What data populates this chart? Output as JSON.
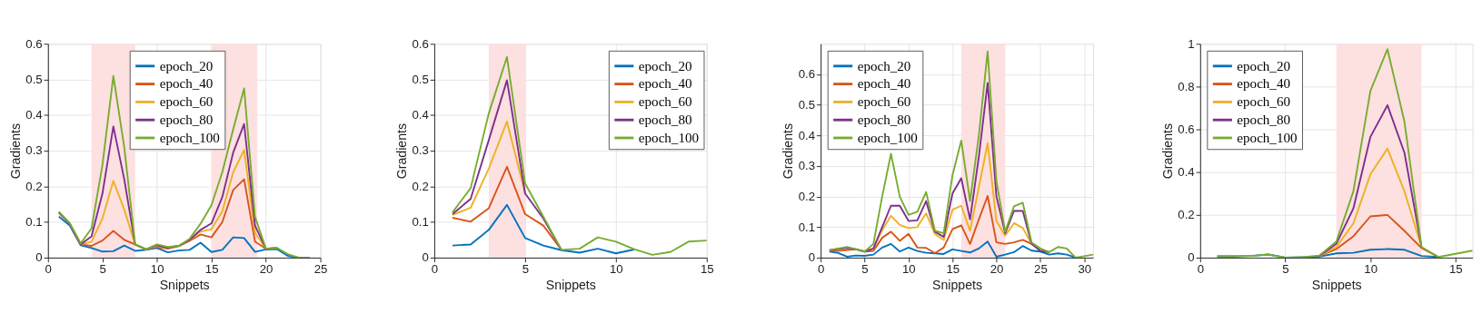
{
  "chart_data": [
    {
      "type": "line",
      "xlabel": "Snippets",
      "ylabel": "Gradients",
      "grid": true,
      "legend": "top",
      "xlim": [
        0,
        25
      ],
      "ylim": [
        0,
        0.6
      ],
      "xticks": [
        0,
        5,
        10,
        15,
        20,
        25
      ],
      "yticks": [
        0,
        0.1,
        0.2,
        0.3,
        0.4,
        0.5,
        0.6
      ],
      "bands": [
        {
          "axis": "x",
          "from": 4,
          "to": 8,
          "color": "#fde0e0"
        },
        {
          "axis": "x",
          "from": 15,
          "to": 19.2,
          "color": "#fde0e0"
        }
      ],
      "x": [
        1,
        2,
        3,
        4,
        5,
        6,
        7,
        8,
        9,
        10,
        11,
        12,
        13,
        14,
        15,
        16,
        17,
        18,
        19,
        20,
        21,
        22,
        23,
        24
      ],
      "series": [
        {
          "name": "epoch_20",
          "color": "#0072bd",
          "values": [
            0.115,
            0.09,
            0.035,
            0.027,
            0.017,
            0.018,
            0.034,
            0.019,
            0.022,
            0.027,
            0.015,
            0.02,
            0.022,
            0.042,
            0.016,
            0.022,
            0.057,
            0.055,
            0.016,
            0.023,
            0.024,
            0.005,
            0,
            0
          ]
        },
        {
          "name": "epoch_40",
          "color": "#d95319",
          "values": [
            0.125,
            0.095,
            0.037,
            0.033,
            0.048,
            0.075,
            0.05,
            0.037,
            0.023,
            0.03,
            0.025,
            0.032,
            0.047,
            0.065,
            0.057,
            0.1,
            0.19,
            0.22,
            0.045,
            0.025,
            0.027,
            null,
            null,
            null
          ]
        },
        {
          "name": "epoch_60",
          "color": "#edb120",
          "values": [
            0.127,
            0.095,
            0.037,
            0.045,
            0.11,
            0.215,
            0.135,
            0.037,
            0.023,
            0.033,
            0.027,
            0.033,
            0.05,
            0.073,
            0.08,
            0.13,
            0.24,
            0.302,
            0.07,
            0.025,
            0.027,
            null,
            null,
            null
          ]
        },
        {
          "name": "epoch_80",
          "color": "#7e2f8e",
          "values": [
            0.128,
            0.095,
            0.037,
            0.06,
            0.18,
            0.368,
            0.22,
            0.037,
            0.023,
            0.035,
            0.028,
            0.033,
            0.05,
            0.078,
            0.096,
            0.17,
            0.295,
            0.375,
            0.09,
            0.025,
            0.027,
            null,
            null,
            null
          ]
        },
        {
          "name": "epoch_100",
          "color": "#77ac30",
          "values": [
            0.128,
            0.097,
            0.04,
            0.082,
            0.26,
            0.51,
            0.31,
            0.037,
            0.023,
            0.037,
            0.03,
            0.033,
            0.053,
            0.095,
            0.147,
            0.24,
            0.36,
            0.475,
            0.115,
            0.025,
            0.028,
            0.01,
            0,
            0
          ]
        }
      ]
    },
    {
      "type": "line",
      "xlabel": "Snippets",
      "ylabel": "Gradients",
      "grid": true,
      "legend": "top right",
      "xlim": [
        0,
        15
      ],
      "ylim": [
        0,
        0.6
      ],
      "xticks": [
        0,
        5,
        10,
        15
      ],
      "yticks": [
        0,
        0.1,
        0.2,
        0.3,
        0.4,
        0.5,
        0.6
      ],
      "bands": [
        {
          "axis": "x",
          "from": 3,
          "to": 5,
          "color": "#fde0e0"
        }
      ],
      "x": [
        1,
        2,
        3,
        4,
        5,
        6,
        7,
        8,
        9,
        10,
        11,
        12,
        13,
        14,
        15
      ],
      "series": [
        {
          "name": "epoch_20",
          "color": "#0072bd",
          "values": [
            0.034,
            0.037,
            0.078,
            0.148,
            0.055,
            0.034,
            0.021,
            0.014,
            0.025,
            0.012,
            0.023,
            null,
            null,
            null,
            null
          ]
        },
        {
          "name": "epoch_40",
          "color": "#d95319",
          "values": [
            0.112,
            0.101,
            0.139,
            0.255,
            0.122,
            0.09,
            0.022,
            null,
            null,
            null,
            null,
            null,
            null,
            null,
            null
          ]
        },
        {
          "name": "epoch_60",
          "color": "#edb120",
          "values": [
            0.12,
            0.14,
            0.25,
            0.382,
            0.18,
            null,
            null,
            null,
            null,
            null,
            null,
            null,
            null,
            null,
            null
          ]
        },
        {
          "name": "epoch_80",
          "color": "#7e2f8e",
          "values": [
            0.122,
            0.165,
            0.33,
            0.498,
            0.18,
            0.11,
            0.022,
            null,
            null,
            null,
            null,
            null,
            null,
            null,
            null
          ]
        },
        {
          "name": "epoch_100",
          "color": "#77ac30",
          "values": [
            0.127,
            0.195,
            0.405,
            0.563,
            0.208,
            0.115,
            0.022,
            0.025,
            0.057,
            0.045,
            0.024,
            0.008,
            0.016,
            0.045,
            0.048
          ]
        }
      ]
    },
    {
      "type": "line",
      "xlabel": "Snippets",
      "ylabel": "Gradients",
      "grid": true,
      "legend": "top left",
      "xlim": [
        0,
        31
      ],
      "ylim": [
        0,
        0.7
      ],
      "xticks": [
        0,
        5,
        10,
        15,
        20,
        25,
        30
      ],
      "yticks": [
        0,
        0.1,
        0.2,
        0.3,
        0.4,
        0.5,
        0.6
      ],
      "bands": [
        {
          "axis": "x",
          "from": 16,
          "to": 21,
          "color": "#fde0e0"
        }
      ],
      "x": [
        1,
        2,
        3,
        4,
        5,
        6,
        7,
        8,
        9,
        10,
        11,
        12,
        13,
        14,
        15,
        16,
        17,
        18,
        19,
        20,
        21,
        22,
        23,
        24,
        25,
        26,
        27,
        28,
        29,
        30,
        31
      ],
      "series": [
        {
          "name": "epoch_20",
          "color": "#0072bd",
          "values": [
            0.02,
            0.015,
            0.003,
            0.007,
            0.006,
            0.01,
            0.033,
            0.045,
            0.02,
            0.033,
            0.022,
            0.016,
            0.014,
            0.012,
            0.027,
            0.022,
            0.017,
            0.03,
            0.053,
            0.003,
            0.01,
            0.018,
            0.038,
            0.023,
            0.02,
            0.01,
            0.014,
            0.01,
            0,
            null,
            null
          ]
        },
        {
          "name": "epoch_40",
          "color": "#d95319",
          "values": [
            0.023,
            0.022,
            0.025,
            0.027,
            0.02,
            0.022,
            0.065,
            0.085,
            0.055,
            0.078,
            0.033,
            0.032,
            0.015,
            0.033,
            0.093,
            0.106,
            0.045,
            0.125,
            0.202,
            0.05,
            0.045,
            0.05,
            0.058,
            0.045,
            0.025,
            0.018,
            null,
            null,
            null,
            null,
            null
          ]
        },
        {
          "name": "epoch_60",
          "color": "#edb120",
          "values": [
            null,
            null,
            null,
            null,
            null,
            0.03,
            0.09,
            0.137,
            0.107,
            0.097,
            0.1,
            0.145,
            0.077,
            0.058,
            0.157,
            0.17,
            0.088,
            0.23,
            0.375,
            0.12,
            0.072,
            0.113,
            0.097,
            0.045,
            0.025,
            0.018,
            null,
            null,
            null,
            null,
            null
          ]
        },
        {
          "name": "epoch_80",
          "color": "#7e2f8e",
          "values": [
            0.025,
            0.028,
            0.032,
            0.028,
            0.02,
            0.03,
            0.1,
            0.17,
            0.17,
            0.12,
            0.122,
            0.185,
            0.085,
            0.068,
            0.21,
            0.26,
            0.125,
            0.33,
            0.572,
            0.2,
            0.08,
            0.153,
            0.153,
            0.045,
            0.022,
            0.018,
            null,
            null,
            null,
            null,
            null
          ]
        },
        {
          "name": "epoch_100",
          "color": "#77ac30",
          "values": [
            0.025,
            0.03,
            0.035,
            0.028,
            0.02,
            0.045,
            0.2,
            0.34,
            0.2,
            0.14,
            0.15,
            0.215,
            0.088,
            0.08,
            0.27,
            0.383,
            0.185,
            0.4,
            0.675,
            0.25,
            0.085,
            0.168,
            0.18,
            0.05,
            0.03,
            0.018,
            0.035,
            0.03,
            0,
            0.005,
            0.01
          ]
        }
      ]
    },
    {
      "type": "line",
      "xlabel": "Snippets",
      "ylabel": "Gradients",
      "grid": true,
      "legend": "top left",
      "xlim": [
        0,
        16
      ],
      "ylim": [
        0,
        1
      ],
      "xticks": [
        0,
        5,
        10,
        15
      ],
      "yticks": [
        0,
        0.2,
        0.4,
        0.6,
        0.8,
        1
      ],
      "bands": [
        {
          "axis": "x",
          "from": 8,
          "to": 13,
          "color": "#fde0e0"
        }
      ],
      "x": [
        1,
        2,
        3,
        4,
        5,
        6,
        7,
        8,
        9,
        10,
        11,
        12,
        13,
        14,
        15,
        16
      ],
      "series": [
        {
          "name": "epoch_20",
          "color": "#0072bd",
          "values": [
            0.005,
            0.005,
            0.008,
            0.015,
            0,
            0.002,
            0.005,
            0.02,
            0.023,
            0.037,
            0.04,
            0.037,
            0.008,
            0.003,
            null,
            null
          ]
        },
        {
          "name": "epoch_40",
          "color": "#d95319",
          "values": [
            null,
            null,
            null,
            null,
            null,
            null,
            0.008,
            0.04,
            0.1,
            0.193,
            0.2,
            0.125,
            0.045,
            0.003,
            null,
            null
          ]
        },
        {
          "name": "epoch_60",
          "color": "#edb120",
          "values": [
            null,
            null,
            null,
            null,
            null,
            null,
            0.008,
            0.05,
            0.16,
            0.39,
            0.51,
            0.31,
            0.05,
            null,
            null,
            null
          ]
        },
        {
          "name": "epoch_80",
          "color": "#7e2f8e",
          "values": [
            null,
            null,
            null,
            null,
            null,
            null,
            0.008,
            0.065,
            0.23,
            0.565,
            0.713,
            0.49,
            0.05,
            null,
            null,
            null
          ]
        },
        {
          "name": "epoch_100",
          "color": "#77ac30",
          "values": [
            0.008,
            0.008,
            0.008,
            0.015,
            0,
            0.002,
            0.01,
            0.075,
            0.31,
            0.78,
            0.975,
            0.635,
            0.05,
            0.003,
            0.018,
            0.033
          ]
        }
      ]
    }
  ]
}
